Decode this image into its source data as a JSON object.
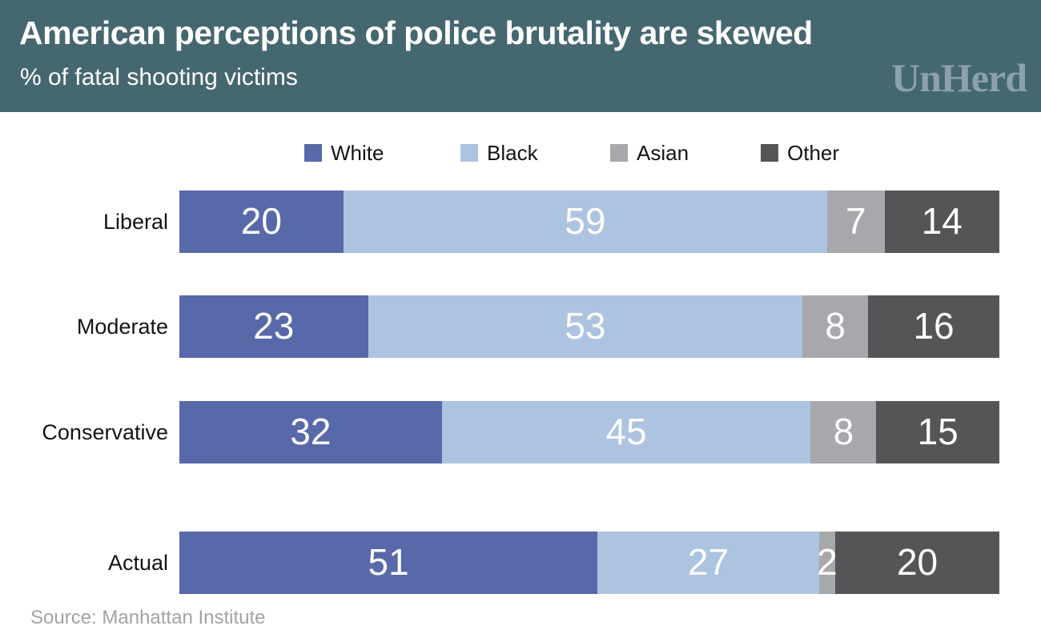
{
  "header": {
    "title": "American perceptions of police brutality are skewed",
    "subtitle": "% of fatal shooting victims",
    "logo_text": "UnHerd",
    "background_color": "#456770",
    "logo_color": "#8ca1aa"
  },
  "chart_data": {
    "type": "bar",
    "orientation": "horizontal",
    "stacked": true,
    "title": "American perceptions of police brutality are skewed",
    "subtitle": "% of fatal shooting victims",
    "categories": [
      "Liberal",
      "Moderate",
      "Conservative",
      "Actual"
    ],
    "series": [
      {
        "name": "White",
        "color": "#5869a9",
        "values": [
          20,
          23,
          32,
          51
        ]
      },
      {
        "name": "Black",
        "color": "#acc4e0",
        "values": [
          59,
          53,
          45,
          27
        ]
      },
      {
        "name": "Asian",
        "color": "#a6a8ab",
        "values": [
          7,
          8,
          8,
          2
        ]
      },
      {
        "name": "Other",
        "color": "#555557",
        "values": [
          14,
          16,
          15,
          20
        ]
      }
    ],
    "xlim": [
      0,
      100
    ],
    "value_labels": true,
    "value_label_color": "#ffffff",
    "legend_position": "top",
    "grid": false
  },
  "layout": {
    "row_tops": [
      238,
      369,
      501,
      664
    ],
    "legend_lefts": [
      380,
      575,
      762,
      950
    ]
  },
  "footer": {
    "source": "Source: Manhattan Institute"
  }
}
